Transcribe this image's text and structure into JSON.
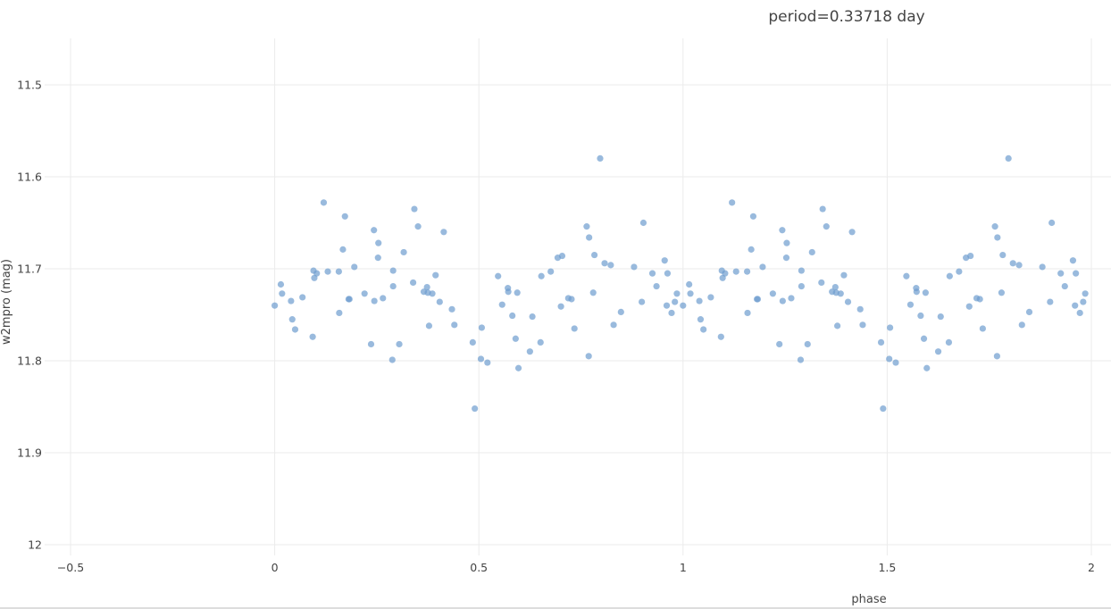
{
  "chart_data": {
    "type": "scatter",
    "title": "period=0.33718 day",
    "xlabel": "phase",
    "ylabel": "w2mpro (mag)",
    "xlim": [
      -0.5,
      2
    ],
    "ylim": [
      11.45,
      12.0
    ],
    "y_reversed": true,
    "x_ticks": [
      "−0.5",
      "0",
      "0.5",
      "1",
      "1.5",
      "2"
    ],
    "x_tick_values": [
      -0.5,
      0,
      0.5,
      1,
      1.5,
      2
    ],
    "y_ticks": [
      "11.5",
      "11.6",
      "11.7",
      "11.8",
      "11.9",
      "12"
    ],
    "y_tick_values": [
      11.5,
      11.6,
      11.7,
      11.8,
      11.9,
      12.0
    ],
    "grid": true,
    "marker_color": "#6d9dcf",
    "series": [
      {
        "points": [
          [
            0.0,
            11.74
          ],
          [
            0.015,
            11.717
          ],
          [
            0.018,
            11.727
          ],
          [
            0.04,
            11.735
          ],
          [
            0.043,
            11.755
          ],
          [
            0.05,
            11.766
          ],
          [
            0.068,
            11.731
          ],
          [
            0.093,
            11.774
          ],
          [
            0.095,
            11.702
          ],
          [
            0.097,
            11.71
          ],
          [
            0.103,
            11.705
          ],
          [
            0.12,
            11.628
          ],
          [
            0.13,
            11.703
          ],
          [
            0.157,
            11.703
          ],
          [
            0.158,
            11.748
          ],
          [
            0.167,
            11.679
          ],
          [
            0.172,
            11.643
          ],
          [
            0.181,
            11.733
          ],
          [
            0.183,
            11.733
          ],
          [
            0.195,
            11.698
          ],
          [
            0.22,
            11.727
          ],
          [
            0.236,
            11.782
          ],
          [
            0.243,
            11.658
          ],
          [
            0.244,
            11.735
          ],
          [
            0.253,
            11.688
          ],
          [
            0.254,
            11.672
          ],
          [
            0.265,
            11.732
          ],
          [
            0.288,
            11.799
          ],
          [
            0.29,
            11.702
          ],
          [
            0.29,
            11.719
          ],
          [
            0.305,
            11.782
          ],
          [
            0.316,
            11.682
          ],
          [
            0.339,
            11.715
          ],
          [
            0.342,
            11.635
          ],
          [
            0.351,
            11.654
          ],
          [
            0.365,
            11.725
          ],
          [
            0.373,
            11.72
          ],
          [
            0.375,
            11.726
          ],
          [
            0.378,
            11.762
          ],
          [
            0.386,
            11.727
          ],
          [
            0.394,
            11.707
          ],
          [
            0.404,
            11.736
          ],
          [
            0.414,
            11.66
          ],
          [
            0.434,
            11.744
          ],
          [
            0.44,
            11.761
          ],
          [
            0.485,
            11.78
          ],
          [
            0.49,
            11.852
          ],
          [
            0.505,
            11.798
          ],
          [
            0.507,
            11.764
          ],
          [
            0.521,
            11.802
          ],
          [
            0.547,
            11.708
          ],
          [
            0.557,
            11.739
          ],
          [
            0.571,
            11.721
          ],
          [
            0.572,
            11.725
          ],
          [
            0.582,
            11.751
          ],
          [
            0.59,
            11.776
          ],
          [
            0.594,
            11.726
          ],
          [
            0.597,
            11.808
          ],
          [
            0.625,
            11.79
          ],
          [
            0.631,
            11.752
          ],
          [
            0.651,
            11.78
          ],
          [
            0.653,
            11.708
          ],
          [
            0.676,
            11.703
          ],
          [
            0.693,
            11.688
          ],
          [
            0.701,
            11.741
          ],
          [
            0.704,
            11.686
          ],
          [
            0.719,
            11.732
          ],
          [
            0.727,
            11.733
          ],
          [
            0.734,
            11.765
          ],
          [
            0.764,
            11.654
          ],
          [
            0.769,
            11.795
          ],
          [
            0.77,
            11.666
          ],
          [
            0.78,
            11.726
          ],
          [
            0.783,
            11.685
          ],
          [
            0.797,
            11.58
          ],
          [
            0.808,
            11.694
          ],
          [
            0.823,
            11.696
          ],
          [
            0.83,
            11.761
          ],
          [
            0.848,
            11.747
          ],
          [
            0.88,
            11.698
          ],
          [
            0.899,
            11.736
          ],
          [
            0.903,
            11.65
          ],
          [
            0.925,
            11.705
          ],
          [
            0.935,
            11.719
          ],
          [
            0.955,
            11.691
          ],
          [
            0.96,
            11.74
          ],
          [
            0.962,
            11.705
          ],
          [
            0.972,
            11.748
          ],
          [
            0.98,
            11.736
          ],
          [
            0.985,
            11.727
          ],
          [
            1.0,
            11.74
          ],
          [
            1.015,
            11.717
          ],
          [
            1.018,
            11.727
          ],
          [
            1.04,
            11.735
          ],
          [
            1.043,
            11.755
          ],
          [
            1.05,
            11.766
          ],
          [
            1.068,
            11.731
          ],
          [
            1.093,
            11.774
          ],
          [
            1.095,
            11.702
          ],
          [
            1.097,
            11.71
          ],
          [
            1.103,
            11.705
          ],
          [
            1.12,
            11.628
          ],
          [
            1.13,
            11.703
          ],
          [
            1.157,
            11.703
          ],
          [
            1.158,
            11.748
          ],
          [
            1.167,
            11.679
          ],
          [
            1.172,
            11.643
          ],
          [
            1.181,
            11.733
          ],
          [
            1.183,
            11.733
          ],
          [
            1.195,
            11.698
          ],
          [
            1.22,
            11.727
          ],
          [
            1.236,
            11.782
          ],
          [
            1.243,
            11.658
          ],
          [
            1.244,
            11.735
          ],
          [
            1.253,
            11.688
          ],
          [
            1.254,
            11.672
          ],
          [
            1.265,
            11.732
          ],
          [
            1.288,
            11.799
          ],
          [
            1.29,
            11.702
          ],
          [
            1.29,
            11.719
          ],
          [
            1.305,
            11.782
          ],
          [
            1.316,
            11.682
          ],
          [
            1.339,
            11.715
          ],
          [
            1.342,
            11.635
          ],
          [
            1.351,
            11.654
          ],
          [
            1.365,
            11.725
          ],
          [
            1.373,
            11.72
          ],
          [
            1.375,
            11.726
          ],
          [
            1.378,
            11.762
          ],
          [
            1.386,
            11.727
          ],
          [
            1.394,
            11.707
          ],
          [
            1.404,
            11.736
          ],
          [
            1.414,
            11.66
          ],
          [
            1.434,
            11.744
          ],
          [
            1.44,
            11.761
          ],
          [
            1.485,
            11.78
          ],
          [
            1.49,
            11.852
          ],
          [
            1.505,
            11.798
          ],
          [
            1.507,
            11.764
          ],
          [
            1.521,
            11.802
          ],
          [
            1.547,
            11.708
          ],
          [
            1.557,
            11.739
          ],
          [
            1.571,
            11.721
          ],
          [
            1.572,
            11.725
          ],
          [
            1.582,
            11.751
          ],
          [
            1.59,
            11.776
          ],
          [
            1.594,
            11.726
          ],
          [
            1.597,
            11.808
          ],
          [
            1.625,
            11.79
          ],
          [
            1.631,
            11.752
          ],
          [
            1.651,
            11.78
          ],
          [
            1.653,
            11.708
          ],
          [
            1.676,
            11.703
          ],
          [
            1.693,
            11.688
          ],
          [
            1.701,
            11.741
          ],
          [
            1.704,
            11.686
          ],
          [
            1.719,
            11.732
          ],
          [
            1.727,
            11.733
          ],
          [
            1.734,
            11.765
          ],
          [
            1.764,
            11.654
          ],
          [
            1.769,
            11.795
          ],
          [
            1.77,
            11.666
          ],
          [
            1.78,
            11.726
          ],
          [
            1.783,
            11.685
          ],
          [
            1.797,
            11.58
          ],
          [
            1.808,
            11.694
          ],
          [
            1.823,
            11.696
          ],
          [
            1.83,
            11.761
          ],
          [
            1.848,
            11.747
          ],
          [
            1.88,
            11.698
          ],
          [
            1.899,
            11.736
          ],
          [
            1.903,
            11.65
          ],
          [
            1.925,
            11.705
          ],
          [
            1.935,
            11.719
          ],
          [
            1.955,
            11.691
          ],
          [
            1.96,
            11.74
          ],
          [
            1.962,
            11.705
          ],
          [
            1.972,
            11.748
          ],
          [
            1.98,
            11.736
          ],
          [
            1.985,
            11.727
          ]
        ]
      }
    ]
  }
}
